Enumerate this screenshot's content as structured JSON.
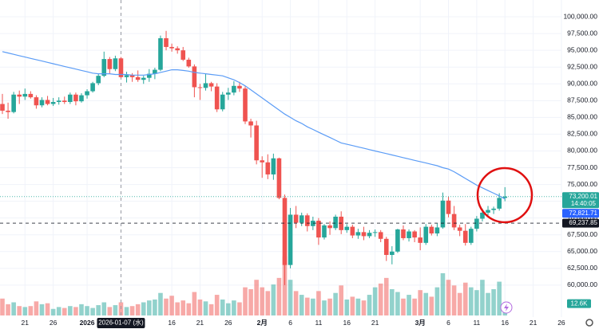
{
  "chart_data": {
    "type": "candlestick",
    "categories": [
      null,
      null,
      null,
      null,
      "21",
      null,
      null,
      null,
      null,
      "26",
      null,
      null,
      null,
      null,
      null,
      "2026",
      null,
      null,
      null,
      null,
      null,
      "2026-01-07 (水)",
      null,
      null,
      null,
      null,
      null,
      null,
      null,
      null,
      "16",
      null,
      null,
      null,
      null,
      "21",
      null,
      null,
      null,
      null,
      "26",
      null,
      null,
      null,
      null,
      null,
      "2月",
      null,
      null,
      null,
      null,
      "6",
      null,
      null,
      null,
      null,
      "11",
      null,
      null,
      null,
      null,
      "16",
      null,
      null,
      null,
      null,
      "21",
      null,
      null,
      null,
      null,
      null,
      null,
      null,
      "3月",
      null,
      null,
      null,
      null,
      "6",
      null,
      null,
      null,
      null,
      "11",
      null,
      null,
      null,
      null,
      "16",
      null,
      null,
      null,
      null,
      "21",
      null,
      null,
      null,
      null,
      "26",
      null
    ],
    "open": [
      87000,
      86000,
      85800,
      88400,
      88100,
      88500,
      88000,
      86800,
      87600,
      87000,
      87300,
      87500,
      87300,
      88400,
      87400,
      88300,
      88900,
      90100,
      91200,
      93700,
      92200,
      93800,
      91000,
      91300,
      91000,
      90600,
      90900,
      91500,
      92100,
      96800,
      95500,
      95300,
      95000,
      93600,
      92600,
      89500,
      89400,
      90100,
      89600,
      86200,
      88400,
      88700,
      89700,
      89300,
      84400,
      83800,
      78600,
      78300,
      76500,
      78900,
      73000,
      63000,
      70500,
      69300,
      70400,
      68800,
      69600,
      67100,
      68900,
      68500,
      70200,
      68200,
      68700,
      67400,
      67900,
      67300,
      67800,
      67900,
      66900,
      64500,
      65000,
      68300,
      67000,
      68000,
      67100,
      66300,
      68700,
      67700,
      68600,
      72600,
      70600,
      68600,
      68100,
      66300,
      68400,
      69900,
      70800,
      71200,
      71400,
      73000,
      null,
      null,
      null,
      null,
      null,
      null,
      null,
      null,
      null,
      null,
      null
    ],
    "high": [
      88500,
      87200,
      88800,
      89000,
      89300,
      88900,
      88300,
      88000,
      88200,
      87900,
      88000,
      88100,
      88700,
      88700,
      88600,
      89200,
      90300,
      91500,
      94800,
      94000,
      94200,
      94000,
      91800,
      91600,
      92000,
      91200,
      92200,
      92400,
      97200,
      97900,
      96000,
      95600,
      95500,
      93900,
      92900,
      90000,
      91500,
      90300,
      90100,
      88800,
      89400,
      90400,
      90300,
      89600,
      84800,
      84500,
      79200,
      79500,
      79600,
      79000,
      73500,
      71500,
      71800,
      70800,
      70700,
      70200,
      70000,
      69100,
      69500,
      70500,
      71000,
      69100,
      69000,
      68400,
      68700,
      68200,
      68300,
      68200,
      67200,
      65800,
      68400,
      68900,
      68300,
      68200,
      68600,
      69100,
      69000,
      69200,
      73800,
      73200,
      71800,
      69000,
      69100,
      68700,
      70300,
      71400,
      71800,
      71700,
      73700,
      74600,
      null,
      null,
      null,
      null,
      null,
      null,
      null,
      null,
      null,
      null,
      null
    ],
    "low": [
      85500,
      84800,
      85600,
      87000,
      87600,
      87800,
      86300,
      86500,
      86800,
      86700,
      86900,
      87000,
      87000,
      86800,
      87200,
      87800,
      88700,
      89800,
      91000,
      91500,
      91900,
      90900,
      90200,
      90300,
      90300,
      90000,
      90300,
      90700,
      91900,
      95000,
      94800,
      94500,
      93400,
      92400,
      88000,
      87600,
      89000,
      88900,
      85800,
      85900,
      87600,
      88300,
      88800,
      84000,
      82000,
      78000,
      76000,
      75800,
      75700,
      72800,
      60000,
      62500,
      68500,
      68800,
      68000,
      68200,
      66000,
      66800,
      67500,
      68200,
      67600,
      67800,
      67000,
      66900,
      66700,
      67000,
      67200,
      66400,
      63600,
      63100,
      64800,
      66700,
      66500,
      66400,
      65200,
      66000,
      67400,
      67300,
      68400,
      70100,
      68200,
      67300,
      65900,
      66000,
      68000,
      69500,
      70400,
      70600,
      71100,
      72500,
      null,
      null,
      null,
      null,
      null,
      null,
      null,
      null,
      null,
      null,
      null
    ],
    "close": [
      86000,
      85800,
      88400,
      88100,
      88500,
      88000,
      86800,
      87600,
      87000,
      87300,
      87500,
      87300,
      88400,
      87400,
      88300,
      88900,
      90100,
      91200,
      93700,
      92200,
      93800,
      91000,
      91300,
      91000,
      90600,
      90900,
      91500,
      92100,
      96800,
      95500,
      95300,
      95000,
      93600,
      92600,
      89500,
      89400,
      90100,
      89600,
      86200,
      88400,
      88700,
      89700,
      89300,
      84400,
      83800,
      78600,
      78300,
      76500,
      78900,
      73000,
      63000,
      70500,
      69300,
      70400,
      68800,
      69600,
      67100,
      68900,
      68500,
      70200,
      68200,
      68700,
      67400,
      67900,
      67300,
      67800,
      67900,
      66900,
      64500,
      65000,
      68300,
      67000,
      68000,
      67100,
      66300,
      68700,
      67700,
      68600,
      72600,
      70600,
      68600,
      68100,
      66300,
      68400,
      69900,
      70800,
      71200,
      71400,
      73000,
      73200.01,
      null,
      null,
      null,
      null,
      null,
      null,
      null,
      null,
      null,
      null,
      null
    ],
    "up_color": "#26a69a",
    "down_color": "#ef5350",
    "ma": {
      "color": "#5b9cf6",
      "values": [
        94800,
        94600,
        94400,
        94200,
        94000,
        93800,
        93600,
        93400,
        93200,
        93000,
        92800,
        92600,
        92400,
        92200,
        92000,
        91800,
        91600,
        91500,
        91500,
        91500,
        91400,
        91400,
        91400,
        91300,
        91300,
        91300,
        91400,
        91500,
        91700,
        91900,
        92100,
        92100,
        92000,
        91900,
        91700,
        91600,
        91500,
        91400,
        91300,
        91200,
        90900,
        90600,
        90200,
        89700,
        89100,
        88500,
        87900,
        87300,
        86700,
        86100,
        85500,
        85000,
        84500,
        84100,
        83600,
        83200,
        82800,
        82400,
        82000,
        81600,
        81200,
        81000,
        80800,
        80600,
        80400,
        80200,
        80000,
        79800,
        79600,
        79400,
        79200,
        79000,
        78800,
        78600,
        78400,
        78200,
        78000,
        77800,
        77500,
        77300,
        76900,
        76400,
        75900,
        75400,
        74900,
        74500,
        74100,
        73700,
        73300,
        72821.71,
        null,
        null,
        null,
        null,
        null,
        null,
        null,
        null,
        null,
        null,
        null
      ]
    },
    "volume": [
      18,
      12,
      14,
      10,
      9,
      10,
      15,
      12,
      13,
      7,
      9,
      8,
      10,
      9,
      12,
      10,
      8,
      11,
      14,
      9,
      11,
      14,
      9,
      10,
      12,
      14,
      16,
      17,
      24,
      18,
      21,
      14,
      16,
      13,
      25,
      17,
      15,
      12,
      22,
      17,
      13,
      16,
      14,
      30,
      28,
      38,
      30,
      26,
      33,
      40,
      63,
      38,
      26,
      22,
      19,
      18,
      26,
      16,
      18,
      24,
      32,
      17,
      20,
      18,
      16,
      22,
      30,
      34,
      40,
      28,
      25,
      18,
      22,
      18,
      27,
      24,
      20,
      30,
      45,
      38,
      32,
      24,
      35,
      30,
      27,
      38,
      24,
      28,
      36,
      12.6,
      null,
      null,
      null,
      null,
      null,
      null,
      null,
      null,
      null,
      null,
      null
    ],
    "volume_ylim": [
      0,
      336
    ],
    "volume_last": {
      "value": 12.6,
      "label": "12.6K"
    },
    "ylim": [
      55000,
      102500
    ],
    "yticks": [
      {
        "value": 60000,
        "label": "60,000.00"
      },
      {
        "value": 62500,
        "label": "62,500.00"
      },
      {
        "value": 65000,
        "label": "65,000.00"
      },
      {
        "value": 67500,
        "label": "67,500.00"
      },
      {
        "value": 70000,
        "label": "70,000.00"
      },
      {
        "value": 72500,
        "label": "72,500.00"
      },
      {
        "value": 75000,
        "label": "75,000.00"
      },
      {
        "value": 77500,
        "label": "77,500.00"
      },
      {
        "value": 80000,
        "label": "80,000.00"
      },
      {
        "value": 82500,
        "label": "82,500.00"
      },
      {
        "value": 85000,
        "label": "85,000.00"
      },
      {
        "value": 87500,
        "label": "87,500.00"
      },
      {
        "value": 90000,
        "label": "90,000.00"
      },
      {
        "value": 92500,
        "label": "92,500.00"
      },
      {
        "value": 95000,
        "label": "95,000.00"
      },
      {
        "value": 97500,
        "label": "97,500.00"
      },
      {
        "value": 100000,
        "label": "100,000.00"
      }
    ],
    "markers": [
      {
        "value": 73200.01,
        "label": "73,200.01",
        "color": "#26a69a"
      },
      {
        "value": 72821.71,
        "label": "72,821.71",
        "color": "#2962ff"
      },
      {
        "value": 69237.85,
        "label": "69,237.85",
        "color": "#131722"
      }
    ],
    "countdown": "14:40:05",
    "crosshair_category": 21
  }
}
